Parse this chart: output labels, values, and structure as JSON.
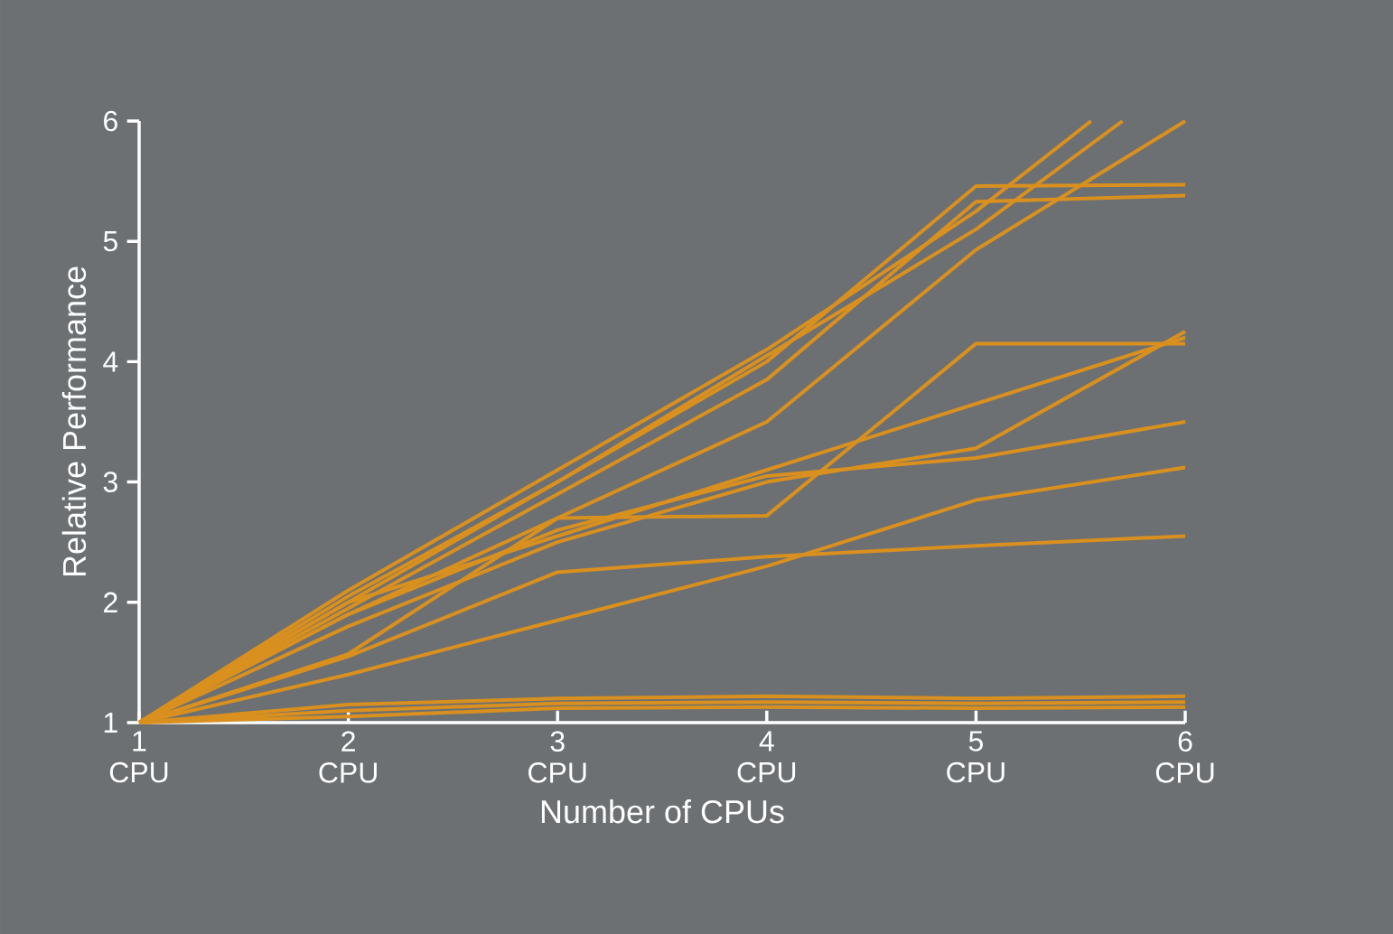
{
  "chart_data": {
    "type": "line",
    "xlabel": "Number of CPUs",
    "ylabel": "Relative Performance",
    "x": [
      1,
      2,
      3,
      4,
      5,
      6
    ],
    "xlim": [
      1,
      6
    ],
    "ylim": [
      1,
      6
    ],
    "xticks": [
      {
        "value": 1,
        "label": "1 CPU"
      },
      {
        "value": 2,
        "label": "2 CPU"
      },
      {
        "value": 3,
        "label": "3 CPU"
      },
      {
        "value": 4,
        "label": "4 CPU"
      },
      {
        "value": 5,
        "label": "5 CPU"
      },
      {
        "value": 6,
        "label": "6 CPU"
      }
    ],
    "yticks": [
      1,
      2,
      3,
      4,
      5,
      6
    ],
    "series": [
      {
        "color": "#d9901e",
        "x": [
          1,
          2,
          3,
          4,
          5,
          5.55
        ],
        "values": [
          1,
          2.1,
          3.1,
          4.1,
          5.25,
          6
        ]
      },
      {
        "color": "#d9901e",
        "x": [
          1,
          2,
          3,
          4,
          5,
          5.7
        ],
        "values": [
          1,
          2.0,
          3.0,
          4.05,
          5.1,
          6
        ]
      },
      {
        "color": "#d9901e",
        "values": [
          1,
          1.9,
          2.7,
          3.5,
          4.93,
          6
        ]
      },
      {
        "color": "#d9901e",
        "values": [
          1,
          2.05,
          3.0,
          4.0,
          5.46,
          5.47
        ]
      },
      {
        "color": "#d9901e",
        "values": [
          1,
          1.95,
          2.9,
          3.85,
          5.33,
          5.38
        ]
      },
      {
        "color": "#d9901e",
        "values": [
          1,
          1.57,
          2.7,
          2.72,
          4.15,
          4.15
        ]
      },
      {
        "color": "#d9901e",
        "values": [
          1,
          2.0,
          2.55,
          3.1,
          3.65,
          4.2
        ]
      },
      {
        "color": "#d9901e",
        "values": [
          1,
          1.8,
          2.5,
          3.0,
          3.28,
          4.25
        ]
      },
      {
        "color": "#d9901e",
        "values": [
          1,
          1.9,
          2.6,
          3.05,
          3.2,
          3.5
        ]
      },
      {
        "color": "#d9901e",
        "values": [
          1,
          1.4,
          1.85,
          2.3,
          2.85,
          3.12
        ]
      },
      {
        "color": "#d9901e",
        "values": [
          1,
          1.55,
          2.25,
          2.38,
          2.47,
          2.55
        ]
      },
      {
        "color": "#d9901e",
        "values": [
          1,
          1.15,
          1.2,
          1.22,
          1.2,
          1.22
        ]
      },
      {
        "color": "#d9901e",
        "values": [
          1,
          1.1,
          1.16,
          1.17,
          1.16,
          1.17
        ]
      },
      {
        "color": "#d9901e",
        "values": [
          1,
          1.05,
          1.12,
          1.13,
          1.12,
          1.13
        ]
      }
    ]
  }
}
